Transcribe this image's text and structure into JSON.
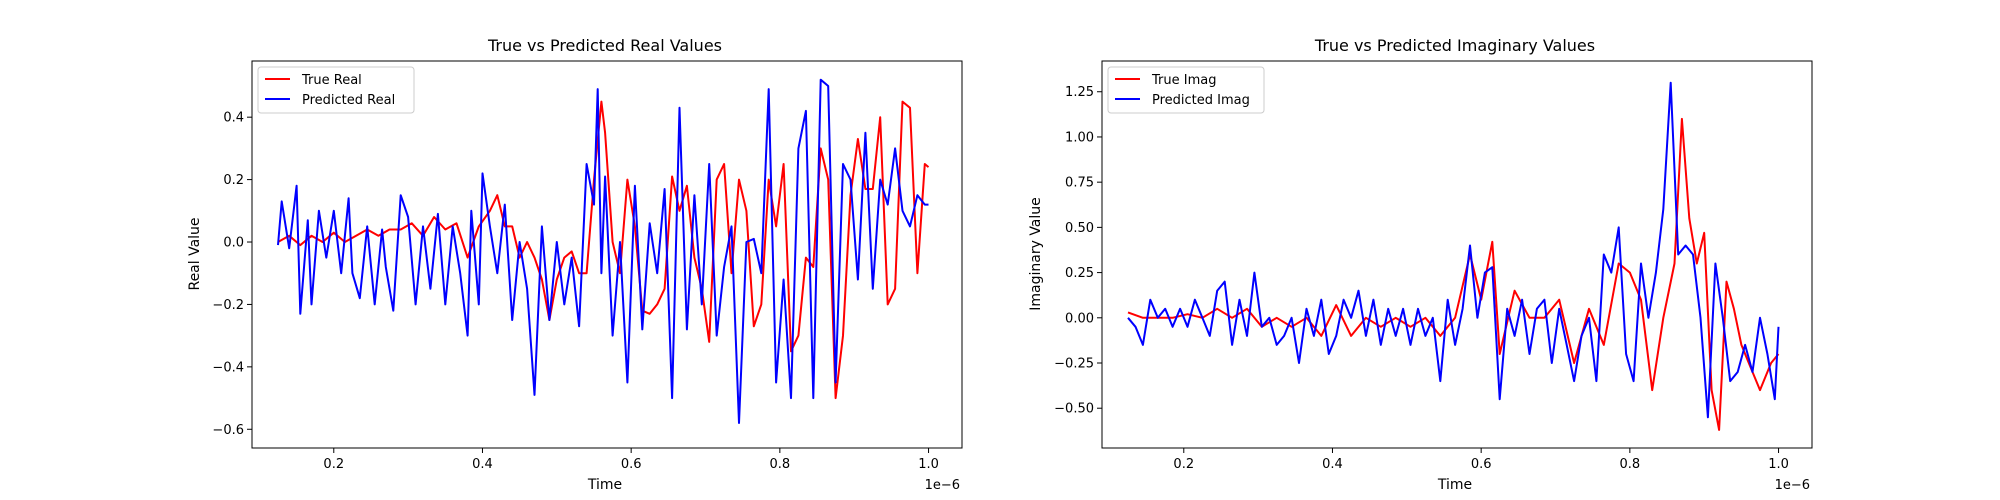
{
  "chart_data": [
    {
      "type": "line",
      "title": "True vs Predicted Real Values",
      "xlabel": "Time",
      "ylabel": "Real Value",
      "x_offset_label": "1e−6",
      "xlim": [
        0.09,
        1.045
      ],
      "ylim": [
        -0.66,
        0.58
      ],
      "xticks": [
        0.2,
        0.4,
        0.6,
        0.8,
        1.0
      ],
      "xtick_labels": [
        "0.2",
        "0.4",
        "0.6",
        "0.8",
        "1.0"
      ],
      "yticks": [
        -0.6,
        -0.4,
        -0.2,
        0.0,
        0.2,
        0.4
      ],
      "ytick_labels": [
        "−0.6",
        "−0.4",
        "−0.2",
        "0.0",
        "0.2",
        "0.4"
      ],
      "grid": false,
      "legend": "top-left",
      "series": [
        {
          "name": "True Real",
          "color": "#ff0000",
          "x": [
            0.125,
            0.14,
            0.155,
            0.17,
            0.185,
            0.2,
            0.215,
            0.23,
            0.245,
            0.26,
            0.275,
            0.29,
            0.305,
            0.32,
            0.335,
            0.35,
            0.365,
            0.38,
            0.395,
            0.41,
            0.42,
            0.43,
            0.44,
            0.45,
            0.46,
            0.47,
            0.48,
            0.49,
            0.5,
            0.51,
            0.52,
            0.53,
            0.54,
            0.55,
            0.56,
            0.565,
            0.575,
            0.585,
            0.595,
            0.605,
            0.615,
            0.625,
            0.635,
            0.645,
            0.655,
            0.665,
            0.675,
            0.685,
            0.695,
            0.705,
            0.715,
            0.725,
            0.735,
            0.745,
            0.755,
            0.765,
            0.775,
            0.785,
            0.795,
            0.805,
            0.815,
            0.825,
            0.835,
            0.845,
            0.855,
            0.865,
            0.875,
            0.885,
            0.895,
            0.905,
            0.915,
            0.925,
            0.935,
            0.945,
            0.955,
            0.965,
            0.975,
            0.985,
            0.995,
            1.0
          ],
          "y": [
            0.0,
            0.02,
            -0.01,
            0.02,
            0.0,
            0.03,
            0.0,
            0.02,
            0.04,
            0.02,
            0.04,
            0.04,
            0.06,
            0.02,
            0.08,
            0.04,
            0.06,
            -0.05,
            0.05,
            0.1,
            0.15,
            0.05,
            0.05,
            -0.05,
            0.0,
            -0.05,
            -0.12,
            -0.25,
            -0.12,
            -0.05,
            -0.03,
            -0.1,
            -0.1,
            0.2,
            0.45,
            0.35,
            0.0,
            -0.1,
            0.2,
            0.05,
            -0.22,
            -0.23,
            -0.2,
            -0.15,
            0.21,
            0.1,
            0.18,
            -0.05,
            -0.15,
            -0.32,
            0.2,
            0.25,
            -0.1,
            0.2,
            0.1,
            -0.27,
            -0.2,
            0.2,
            0.05,
            0.25,
            -0.35,
            -0.3,
            -0.05,
            -0.08,
            0.3,
            0.2,
            -0.5,
            -0.3,
            0.15,
            0.33,
            0.17,
            0.17,
            0.4,
            -0.2,
            -0.15,
            0.45,
            0.43,
            -0.1,
            0.25,
            0.24
          ]
        },
        {
          "name": "Predicted Real",
          "color": "#0000ff",
          "x": [
            0.125,
            0.13,
            0.14,
            0.15,
            0.155,
            0.165,
            0.17,
            0.18,
            0.19,
            0.2,
            0.21,
            0.22,
            0.225,
            0.235,
            0.245,
            0.255,
            0.265,
            0.27,
            0.28,
            0.29,
            0.3,
            0.31,
            0.32,
            0.33,
            0.34,
            0.35,
            0.36,
            0.37,
            0.38,
            0.385,
            0.395,
            0.4,
            0.41,
            0.42,
            0.43,
            0.44,
            0.45,
            0.46,
            0.47,
            0.48,
            0.49,
            0.5,
            0.51,
            0.52,
            0.53,
            0.54,
            0.55,
            0.555,
            0.56,
            0.565,
            0.575,
            0.585,
            0.595,
            0.605,
            0.615,
            0.625,
            0.635,
            0.645,
            0.655,
            0.665,
            0.675,
            0.685,
            0.695,
            0.705,
            0.715,
            0.725,
            0.735,
            0.745,
            0.755,
            0.765,
            0.775,
            0.785,
            0.795,
            0.805,
            0.815,
            0.825,
            0.835,
            0.845,
            0.855,
            0.865,
            0.875,
            0.885,
            0.895,
            0.905,
            0.915,
            0.925,
            0.935,
            0.945,
            0.955,
            0.965,
            0.975,
            0.985,
            0.995,
            1.0
          ],
          "y": [
            -0.01,
            0.13,
            -0.02,
            0.18,
            -0.23,
            0.07,
            -0.2,
            0.1,
            -0.05,
            0.1,
            -0.1,
            0.14,
            -0.1,
            -0.18,
            0.05,
            -0.2,
            0.04,
            -0.08,
            -0.22,
            0.15,
            0.08,
            -0.2,
            0.05,
            -0.15,
            0.09,
            -0.2,
            0.05,
            -0.1,
            -0.3,
            0.1,
            -0.2,
            0.22,
            0.05,
            -0.1,
            0.12,
            -0.25,
            0.0,
            -0.15,
            -0.49,
            0.05,
            -0.25,
            0.0,
            -0.2,
            -0.05,
            -0.27,
            0.25,
            0.12,
            0.49,
            -0.1,
            0.21,
            -0.3,
            0.0,
            -0.45,
            0.18,
            -0.28,
            0.06,
            -0.1,
            0.17,
            -0.5,
            0.43,
            -0.28,
            0.15,
            -0.2,
            0.25,
            -0.3,
            -0.08,
            0.05,
            -0.58,
            0.0,
            0.01,
            -0.1,
            0.49,
            -0.45,
            -0.12,
            -0.5,
            0.3,
            0.42,
            -0.5,
            0.52,
            0.5,
            -0.45,
            0.25,
            0.2,
            -0.12,
            0.35,
            -0.15,
            0.2,
            0.12,
            0.3,
            0.1,
            0.05,
            0.15,
            0.12,
            0.12
          ]
        }
      ]
    },
    {
      "type": "line",
      "title": "True vs Predicted Imaginary Values",
      "xlabel": "Time",
      "ylabel": "Imaginary Value",
      "x_offset_label": "1e−6",
      "xlim": [
        0.09,
        1.045
      ],
      "ylim": [
        -0.72,
        1.42
      ],
      "xticks": [
        0.2,
        0.4,
        0.6,
        0.8,
        1.0
      ],
      "xtick_labels": [
        "0.2",
        "0.4",
        "0.6",
        "0.8",
        "1.0"
      ],
      "yticks": [
        -0.5,
        -0.25,
        0.0,
        0.25,
        0.5,
        0.75,
        1.0,
        1.25
      ],
      "ytick_labels": [
        "−0.50",
        "−0.25",
        "0.00",
        "0.25",
        "0.50",
        "0.75",
        "1.00",
        "1.25"
      ],
      "grid": false,
      "legend": "top-left",
      "series": [
        {
          "name": "True Imag",
          "color": "#ff0000",
          "x": [
            0.125,
            0.145,
            0.165,
            0.185,
            0.205,
            0.225,
            0.245,
            0.265,
            0.285,
            0.305,
            0.325,
            0.345,
            0.365,
            0.385,
            0.405,
            0.425,
            0.445,
            0.465,
            0.485,
            0.505,
            0.525,
            0.545,
            0.565,
            0.585,
            0.6,
            0.615,
            0.625,
            0.645,
            0.665,
            0.685,
            0.705,
            0.725,
            0.745,
            0.765,
            0.785,
            0.8,
            0.815,
            0.83,
            0.845,
            0.86,
            0.87,
            0.88,
            0.89,
            0.9,
            0.91,
            0.92,
            0.93,
            0.94,
            0.95,
            0.96,
            0.975,
            0.99,
            1.0
          ],
          "y": [
            0.03,
            0.0,
            0.0,
            0.0,
            0.02,
            0.0,
            0.05,
            0.0,
            0.05,
            -0.05,
            0.0,
            -0.05,
            0.0,
            -0.1,
            0.07,
            -0.1,
            0.0,
            -0.05,
            0.0,
            -0.05,
            0.0,
            -0.1,
            0.0,
            0.35,
            0.1,
            0.42,
            -0.2,
            0.15,
            0.0,
            0.0,
            0.1,
            -0.25,
            0.05,
            -0.15,
            0.3,
            0.25,
            0.1,
            -0.4,
            0.0,
            0.3,
            1.1,
            0.55,
            0.3,
            0.47,
            -0.4,
            -0.62,
            0.2,
            0.05,
            -0.15,
            -0.25,
            -0.4,
            -0.25,
            -0.2
          ]
        },
        {
          "name": "Predicted Imag",
          "color": "#0000ff",
          "x": [
            0.125,
            0.135,
            0.145,
            0.155,
            0.165,
            0.175,
            0.185,
            0.195,
            0.205,
            0.215,
            0.225,
            0.235,
            0.245,
            0.255,
            0.265,
            0.275,
            0.285,
            0.295,
            0.305,
            0.315,
            0.325,
            0.335,
            0.345,
            0.355,
            0.365,
            0.375,
            0.385,
            0.395,
            0.405,
            0.415,
            0.425,
            0.435,
            0.445,
            0.455,
            0.465,
            0.475,
            0.485,
            0.495,
            0.505,
            0.515,
            0.525,
            0.535,
            0.545,
            0.555,
            0.565,
            0.575,
            0.585,
            0.595,
            0.605,
            0.615,
            0.625,
            0.635,
            0.645,
            0.655,
            0.665,
            0.675,
            0.685,
            0.695,
            0.705,
            0.715,
            0.725,
            0.735,
            0.745,
            0.755,
            0.765,
            0.775,
            0.785,
            0.795,
            0.805,
            0.815,
            0.825,
            0.835,
            0.845,
            0.855,
            0.865,
            0.875,
            0.885,
            0.895,
            0.905,
            0.915,
            0.925,
            0.935,
            0.945,
            0.955,
            0.965,
            0.975,
            0.985,
            0.995,
            1.0
          ],
          "y": [
            0.0,
            -0.05,
            -0.15,
            0.1,
            0.0,
            0.05,
            -0.05,
            0.05,
            -0.05,
            0.1,
            0.0,
            -0.1,
            0.15,
            0.2,
            -0.15,
            0.1,
            -0.1,
            0.25,
            -0.05,
            0.0,
            -0.15,
            -0.1,
            0.0,
            -0.25,
            0.05,
            -0.1,
            0.1,
            -0.2,
            -0.1,
            0.1,
            0.0,
            0.15,
            -0.1,
            0.1,
            -0.15,
            0.05,
            -0.1,
            0.05,
            -0.15,
            0.05,
            -0.1,
            0.0,
            -0.35,
            0.1,
            -0.15,
            0.05,
            0.4,
            0.0,
            0.25,
            0.28,
            -0.45,
            0.05,
            -0.1,
            0.1,
            -0.2,
            0.05,
            0.1,
            -0.25,
            0.05,
            -0.15,
            -0.35,
            -0.1,
            0.0,
            -0.35,
            0.35,
            0.25,
            0.5,
            -0.2,
            -0.35,
            0.3,
            0.0,
            0.25,
            0.6,
            1.3,
            0.35,
            0.4,
            0.35,
            0.0,
            -0.55,
            0.3,
            0.0,
            -0.35,
            -0.3,
            -0.15,
            -0.3,
            0.0,
            -0.2,
            -0.45,
            -0.05
          ]
        }
      ]
    }
  ]
}
